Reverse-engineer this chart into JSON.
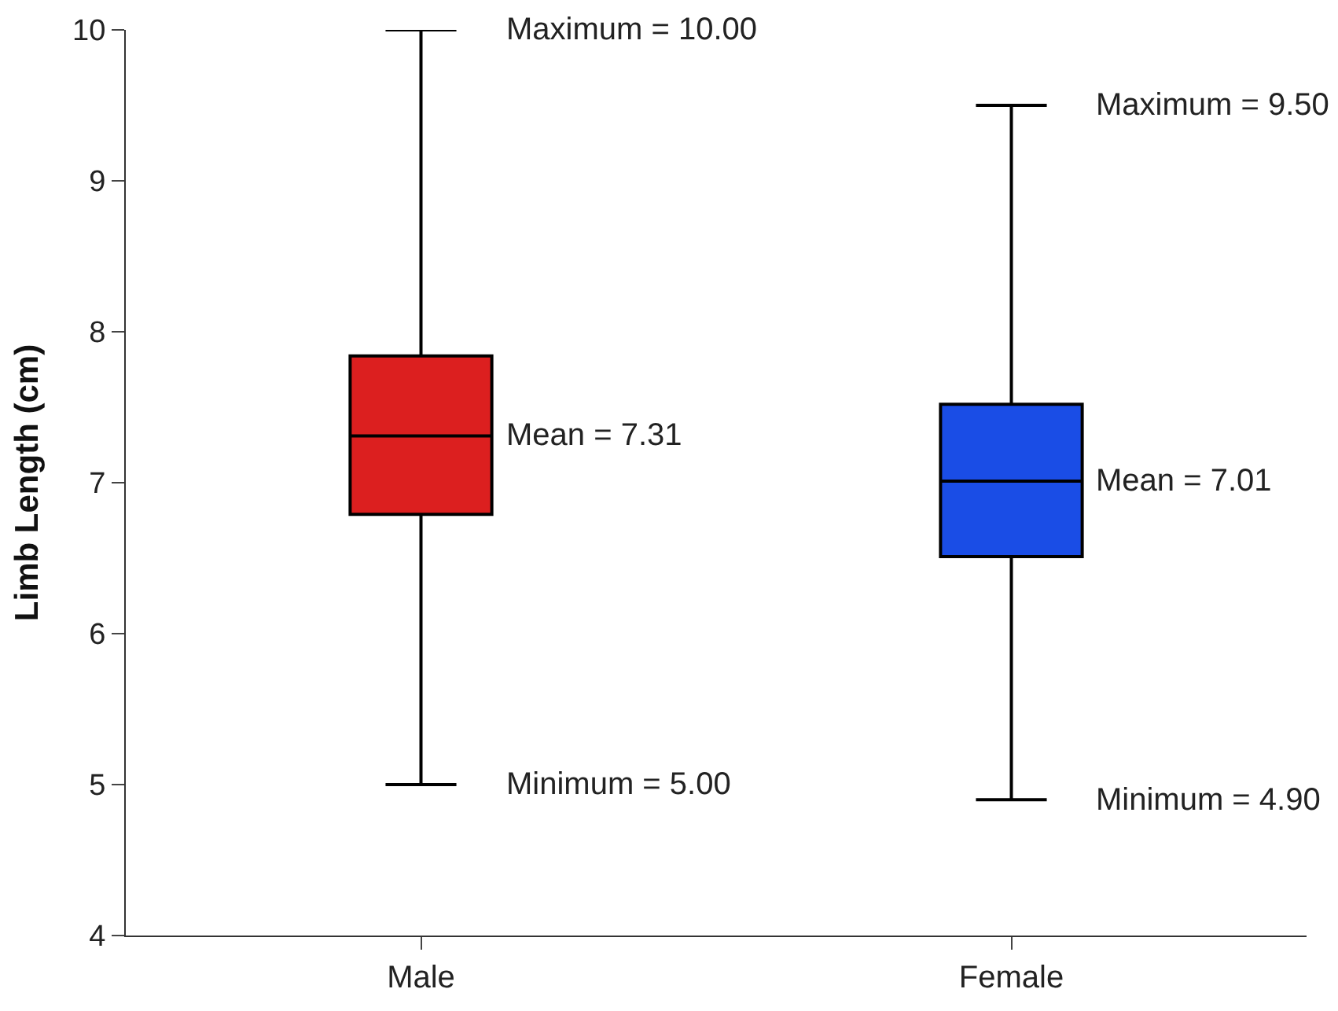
{
  "chart_data": {
    "type": "box",
    "ylabel": "Limb Length (cm)",
    "categories": [
      "Male",
      "Female"
    ],
    "colors": [
      "#dc1f1f",
      "#1a4de6"
    ],
    "boxes": [
      {
        "low": 5.0,
        "q1": 6.79,
        "median": 7.31,
        "q3": 7.84,
        "high": 10.0
      },
      {
        "low": 4.9,
        "q1": 6.51,
        "median": 7.01,
        "q3": 7.52,
        "high": 9.5
      }
    ],
    "ylim": [
      4,
      10
    ],
    "yticks": [
      4,
      5,
      6,
      7,
      8,
      9,
      10
    ],
    "legend": false,
    "annotations": [
      {
        "text": "Maximum = 10.00",
        "x": "Male",
        "y": 10.0
      },
      {
        "text": "Mean = 7.31",
        "x": "Male",
        "y": 7.31
      },
      {
        "text": "Minimum = 5.00",
        "x": "Male",
        "y": 5.0
      },
      {
        "text": "Maximum = 9.50",
        "x": "Female",
        "y": 9.5
      },
      {
        "text": "Mean = 7.01",
        "x": "Female",
        "y": 7.01
      },
      {
        "text": "Minimum = 4.90",
        "x": "Female",
        "y": 4.9
      }
    ]
  }
}
